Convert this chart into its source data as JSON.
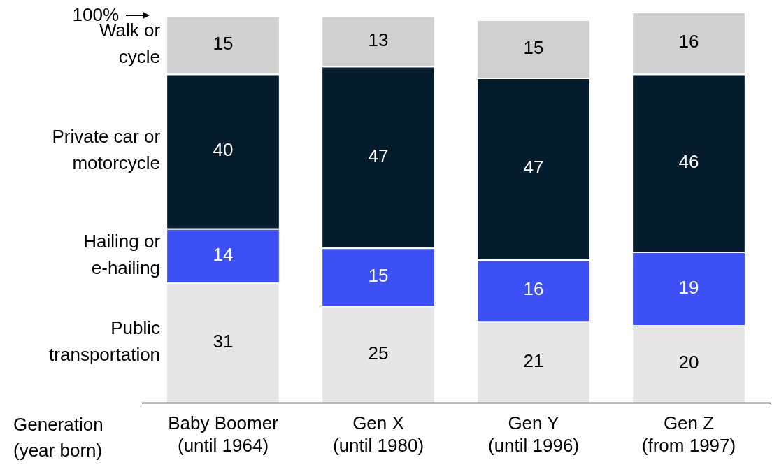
{
  "chart_data": {
    "type": "bar",
    "stacked": true,
    "categories": [
      "Baby Boomer\n(until 1964)",
      "Gen X\n(until 1980)",
      "Gen Y\n(until 1996)",
      "Gen Z\n(from 1997)"
    ],
    "xlabel": "Generation\n(year born)",
    "series": [
      {
        "name": "Public\ntransportation",
        "color": "#e6e6e6",
        "values": [
          31,
          25,
          21,
          20
        ]
      },
      {
        "name": "Hailing or\ne-hailing",
        "color": "#3c50f5",
        "values": [
          14,
          15,
          16,
          19
        ]
      },
      {
        "name": "Private car or\nmotorcycle",
        "color": "#051c2c",
        "values": [
          40,
          47,
          47,
          46
        ]
      },
      {
        "name": "Walk or\ncycle",
        "color": "#d0d0d0",
        "values": [
          15,
          13,
          15,
          16
        ]
      }
    ],
    "ylim": [
      0,
      101
    ],
    "tick_labels": "x",
    "data_labels": true,
    "grid": false,
    "legend": "left",
    "annotations": [
      "100%"
    ]
  }
}
